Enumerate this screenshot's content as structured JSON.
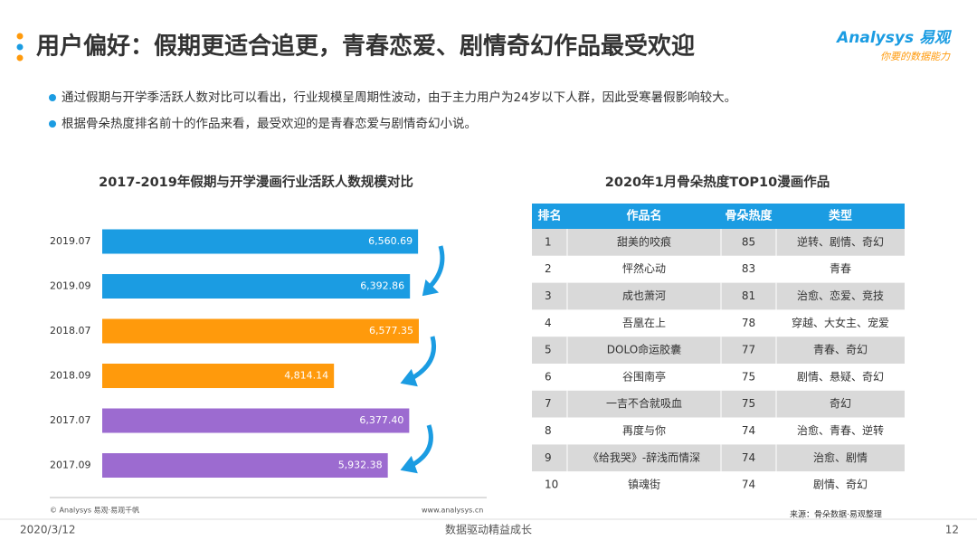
{
  "header": {
    "title": "用户偏好：假期更适合追更，青春恋爱、剧情奇幻作品最受欢迎",
    "logo": "Analysys 易观",
    "logo_slogan": "你要的数据能力"
  },
  "bullets": [
    "通过假期与开学季活跃人数对比可以看出，行业规模呈周期性波动，由于主力用户为24岁以下人群，因此受寒暑假影响较大。",
    "根据骨朵热度排名前十的作品来看，最受欢迎的是青春恋爱与剧情奇幻小说。"
  ],
  "chart_data": {
    "type": "bar",
    "orientation": "horizontal",
    "title": "2017-2019年假期与开学漫画行业活跃人数规模对比",
    "categories": [
      "2019.07",
      "2019.09",
      "2018.07",
      "2018.09",
      "2017.07",
      "2017.09"
    ],
    "values": [
      6560.69,
      6392.86,
      6577.35,
      4814.14,
      6377.4,
      5932.38
    ],
    "value_labels": [
      "6,560.69",
      "6,392.86",
      "6,577.35",
      "4,814.14",
      "6,377.40",
      "5,932.38"
    ],
    "colors": [
      "#1b9ce2",
      "#1b9ce2",
      "#ff9a0c",
      "#ff9a0c",
      "#9c6bd0",
      "#9c6bd0"
    ],
    "credit": "© Analysys 易观·易观千帆",
    "url": "www.analysys.cn"
  },
  "table": {
    "title": "2020年1月骨朵热度TOP10漫画作品",
    "columns": [
      "排名",
      "作品名",
      "骨朵热度",
      "类型"
    ],
    "rows": [
      [
        "1",
        "甜美的咬痕",
        "85",
        "逆转、剧情、奇幻"
      ],
      [
        "2",
        "怦然心动",
        "83",
        "青春"
      ],
      [
        "3",
        "成也萧河",
        "81",
        "治愈、恋爱、竞技"
      ],
      [
        "4",
        "吾凰在上",
        "78",
        "穿越、大女主、宠爱"
      ],
      [
        "5",
        "DOLO命运胶囊",
        "77",
        "青春、奇幻"
      ],
      [
        "6",
        "谷围南亭",
        "75",
        "剧情、悬疑、奇幻"
      ],
      [
        "7",
        "一吉不合就吸血",
        "75",
        "奇幻"
      ],
      [
        "8",
        "再度与你",
        "74",
        "治愈、青春、逆转"
      ],
      [
        "9",
        "《给我哭》-辞浅而情深",
        "74",
        "治愈、剧情"
      ],
      [
        "10",
        "镇魂街",
        "74",
        "剧情、奇幻"
      ]
    ],
    "source": "来源：骨朵数据·易观整理"
  },
  "footer": {
    "date": "2020/3/12",
    "slogan": "数据驱动精益成长",
    "page": "12"
  }
}
